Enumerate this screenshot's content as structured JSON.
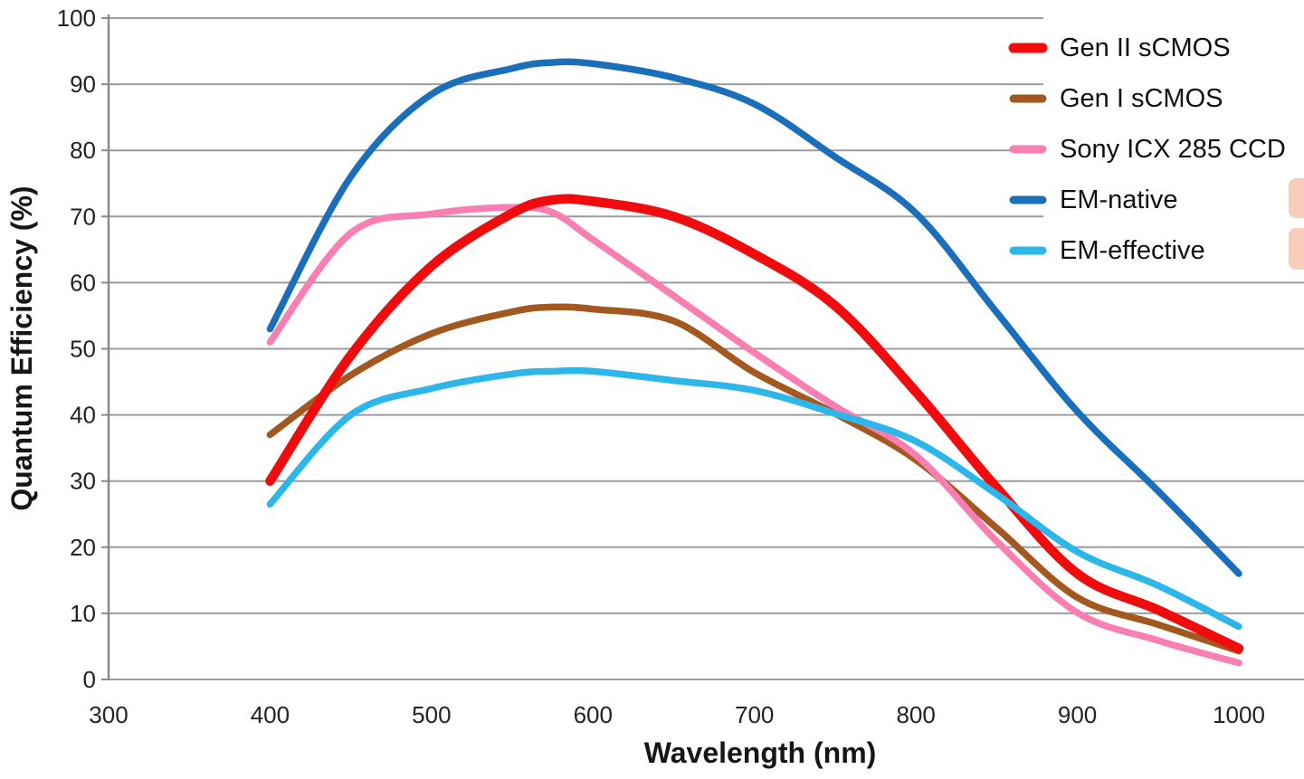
{
  "chart_data": {
    "type": "line",
    "title": "",
    "xlabel": "Wavelength (nm)",
    "ylabel": "Quantum Efficiency (%)",
    "xlim": [
      300,
      1000
    ],
    "ylim": [
      0,
      100
    ],
    "x_ticks": [
      300,
      400,
      500,
      600,
      700,
      800,
      900,
      1000
    ],
    "y_ticks": [
      0,
      10,
      20,
      30,
      40,
      50,
      60,
      70,
      80,
      90,
      100
    ],
    "grid": "horizontal",
    "grid_color": "#9b9b9b",
    "axis_color": "#8a8a8a",
    "legend_position": "top-right",
    "x": [
      400,
      450,
      500,
      550,
      575,
      600,
      650,
      700,
      750,
      800,
      850,
      900,
      950,
      1000
    ],
    "series": [
      {
        "name": "Gen II sCMOS",
        "color": "#f00c0c",
        "line_width": 10.5,
        "values": [
          30,
          49,
          62.5,
          70.5,
          72.5,
          72.3,
          70,
          64.3,
          56.5,
          43.5,
          29,
          16,
          10.5,
          4.7
        ]
      },
      {
        "name": "Gen I sCMOS",
        "color": "#a3581f",
        "line_width": 7.5,
        "values": [
          37,
          46,
          52.3,
          55.6,
          56.3,
          56,
          54.2,
          46.4,
          40.2,
          33.2,
          22.9,
          12.4,
          8.3,
          4.3
        ]
      },
      {
        "name": "Sony ICX 285 CCD",
        "color": "#f97eb1",
        "line_width": 7.5,
        "values": [
          51,
          67.5,
          70.4,
          71.4,
          70.6,
          66.5,
          58,
          49.4,
          41.3,
          33.9,
          20.9,
          10.1,
          5.9,
          2.5
        ]
      },
      {
        "name": "EM-native",
        "color": "#1b6fba",
        "line_width": 7.5,
        "values": [
          53,
          76,
          88.5,
          92.4,
          93.3,
          93.1,
          91,
          87,
          79,
          70.5,
          55.5,
          40.5,
          28.5,
          16
        ]
      },
      {
        "name": "EM-effective",
        "color": "#2cb6ea",
        "line_width": 7.5,
        "values": [
          26.5,
          40,
          44,
          46.2,
          46.6,
          46.6,
          45.2,
          43.7,
          40.2,
          36,
          28,
          19.3,
          14.2,
          8
        ]
      }
    ],
    "highlights": {
      "color": "#f8cdb9",
      "attached_to": [
        "EM-native",
        "EM-effective"
      ]
    }
  }
}
